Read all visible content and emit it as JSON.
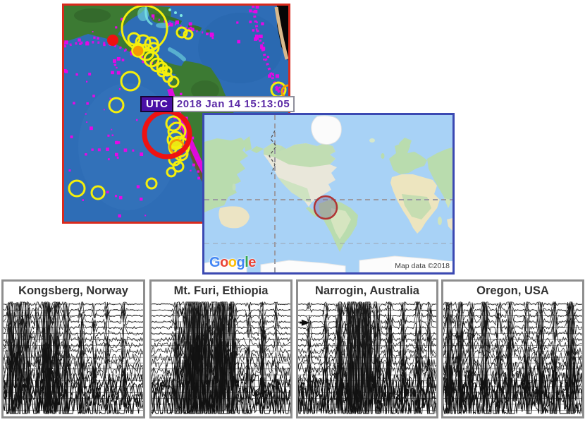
{
  "event_map": {
    "utc_label": "UTC",
    "timestamp": "2018 Jan 14 15:13:05",
    "border_color": "#d92a1d",
    "quake_ring_color": "#f4ef0c",
    "highlight_ring_color": "#ee1212",
    "plate_boundary_color": "#e607e6",
    "recent_event_color": "#ee1111",
    "older_event_color": "#f59a05"
  },
  "world_map": {
    "logo": {
      "l1": "G",
      "l2": "o",
      "l3": "o",
      "l4": "g",
      "l5": "l",
      "l6": "e"
    },
    "logo_colors": {
      "blue": "#4285F4",
      "red": "#EA4335",
      "yellow": "#FBBC05",
      "green": "#34A853"
    },
    "attribution": "Map data ©2018",
    "border_color": "#3b49b2",
    "epicenter_marker_color": "#b03535"
  },
  "seismograms": {
    "panels": [
      {
        "label": "Kongsberg, Norway"
      },
      {
        "label": "Mt. Furi, Ethiopia"
      },
      {
        "label": "Narrogin, Australia"
      },
      {
        "label": "Oregon, USA"
      }
    ]
  }
}
